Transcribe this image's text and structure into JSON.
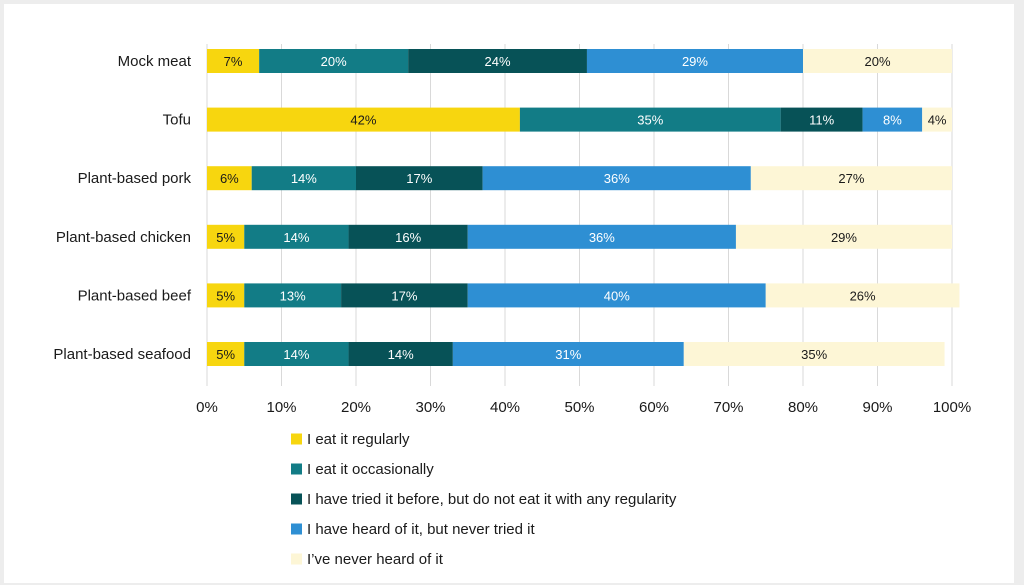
{
  "chart_data": {
    "type": "bar",
    "orientation": "horizontal",
    "stacked": true,
    "title": "",
    "xlabel": "",
    "ylabel": "",
    "xlim": [
      0,
      100
    ],
    "grid": true,
    "legend_position": "bottom",
    "x_ticks": [
      "0%",
      "10%",
      "20%",
      "30%",
      "40%",
      "50%",
      "60%",
      "70%",
      "80%",
      "90%",
      "100%"
    ],
    "categories": [
      "Mock meat",
      "Tofu",
      "Plant-based pork",
      "Plant-based chicken",
      "Plant-based beef",
      "Plant-based seafood"
    ],
    "series": [
      {
        "name": "I eat it regularly",
        "color": "#f7d60f",
        "label_color": "#1a1a1a",
        "values": [
          7,
          42,
          6,
          5,
          5,
          5
        ],
        "labels": [
          "7%",
          "42%",
          "6%",
          "5%",
          "5%",
          "5%"
        ]
      },
      {
        "name": "I eat it occasionally",
        "color": "#127c86",
        "label_color": "#ffffff",
        "values": [
          20,
          35,
          14,
          14,
          13,
          14
        ],
        "labels": [
          "20%",
          "35%",
          "14%",
          "14%",
          "13%",
          "14%"
        ]
      },
      {
        "name": "I have tried it before, but do not eat it with any regularity",
        "color": "#075257",
        "label_color": "#ffffff",
        "values": [
          24,
          11,
          17,
          16,
          17,
          14
        ],
        "labels": [
          "24%",
          "11%",
          "17%",
          "16%",
          "17%",
          "14%"
        ]
      },
      {
        "name": "I have heard of it, but never tried it",
        "color": "#2e8fd3",
        "label_color": "#ffffff",
        "values": [
          29,
          8,
          36,
          36,
          40,
          31
        ],
        "labels": [
          "29%",
          "8%",
          "36%",
          "36%",
          "40%",
          "31%"
        ]
      },
      {
        "name": "I’ve never heard of it",
        "color": "#fdf6d6",
        "label_color": "#1a1a1a",
        "values": [
          20,
          4,
          27,
          29,
          26,
          35
        ],
        "labels": [
          "20%",
          "4%",
          "27%",
          "29%",
          "26%",
          "35%"
        ]
      }
    ]
  }
}
